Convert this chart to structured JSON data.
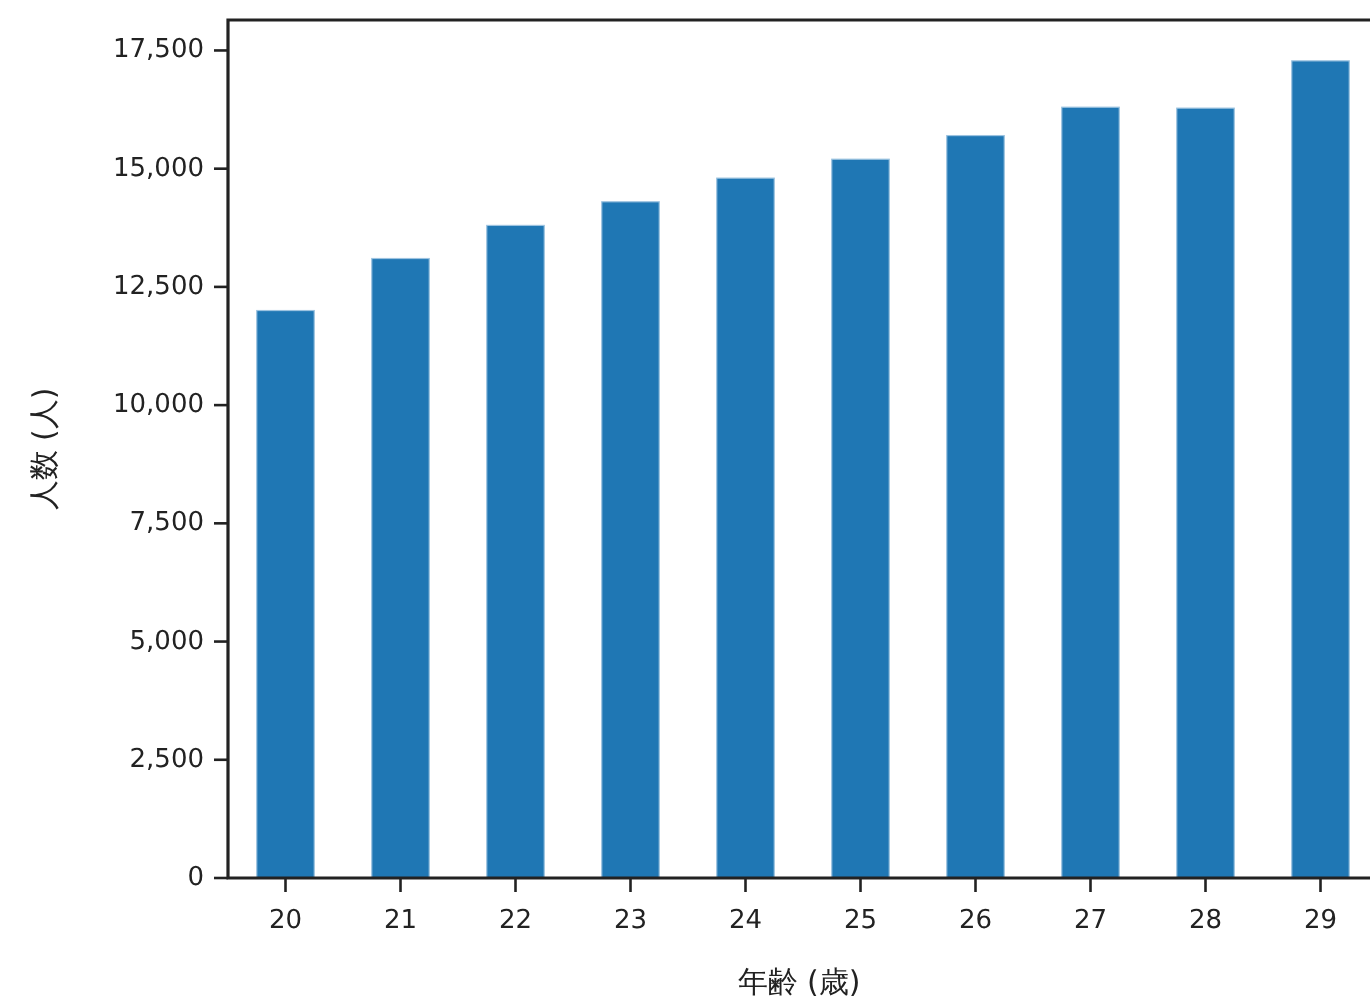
{
  "chart_data": {
    "type": "bar",
    "xlabel": "年齢 (歳)",
    "ylabel": "人数 (人)",
    "categories": [
      "20",
      "21",
      "22",
      "23",
      "24",
      "25",
      "26",
      "27",
      "28",
      "29"
    ],
    "values": [
      12000,
      13100,
      13800,
      14300,
      14800,
      15200,
      15700,
      16300,
      16280,
      17280
    ],
    "color": "#1f77b4",
    "ylim": [
      0,
      18144
    ],
    "yticks": [
      {
        "value": 0,
        "label": "0"
      },
      {
        "value": 2500,
        "label": "2,500"
      },
      {
        "value": 5000,
        "label": "5,000"
      },
      {
        "value": 7500,
        "label": "7,500"
      },
      {
        "value": 10000,
        "label": "10,000"
      },
      {
        "value": 12500,
        "label": "12,500"
      },
      {
        "value": 15000,
        "label": "15,000"
      },
      {
        "value": 17500,
        "label": "17,500"
      }
    ],
    "grid": false
  }
}
